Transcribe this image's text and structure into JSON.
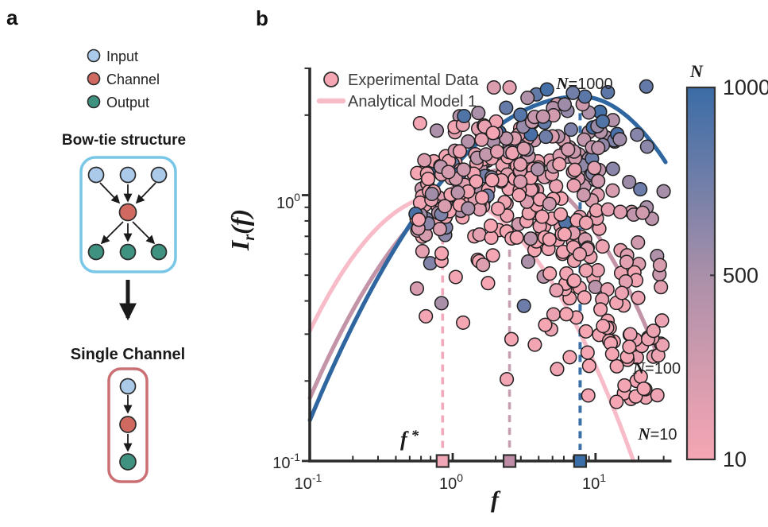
{
  "figure": {
    "panel_a_label": "a",
    "panel_b_label": "b"
  },
  "panel_a": {
    "legend": [
      {
        "label": "Input",
        "color": "#ABC9E9"
      },
      {
        "label": "Channel",
        "color": "#D0695F"
      },
      {
        "label": "Output",
        "color": "#3F9180"
      }
    ],
    "bowtie_title": "Bow-tie structure",
    "single_channel_title": "Single Channel",
    "bowtie_box_color": "#79C7E6",
    "single_box_color": "#CA6F73",
    "arrow_color": "#1a1a1a"
  },
  "chart_data": {
    "type": "scatter",
    "xlabel": "f",
    "ylabel": "Ir(f)",
    "ylabel_parts": {
      "main": "I",
      "sub": "r",
      "rest": "(f)"
    },
    "xscale": "log",
    "yscale": "log",
    "xlim": [
      0.1,
      33.9
    ],
    "ylim": [
      0.098,
      3.05
    ],
    "grid": false,
    "x_major": [
      {
        "value": 0.1,
        "base": "10",
        "exp": "-1"
      },
      {
        "value": 1,
        "base": "10",
        "exp": "0"
      },
      {
        "value": 10,
        "base": "10",
        "exp": "1"
      }
    ],
    "x_minor": [
      0.2,
      0.3,
      0.4,
      0.5,
      0.6,
      0.7,
      0.8,
      0.9,
      2,
      3,
      4,
      5,
      6,
      7,
      8,
      9,
      20,
      30
    ],
    "y_major": [
      {
        "value": 1,
        "base": "10",
        "exp": "0"
      },
      {
        "value": 0.1,
        "base": "10",
        "exp": "-1"
      }
    ],
    "y_minor": [
      0.2,
      0.3,
      0.4,
      0.5,
      0.6,
      0.7,
      0.8,
      0.9,
      2,
      3
    ],
    "legend": [
      {
        "label": "Experimental Data",
        "type": "marker"
      },
      {
        "label": "Analytical Model 1",
        "type": "line"
      }
    ],
    "series": [
      {
        "label": "N=10",
        "N": 10,
        "color": "#F8BBC8",
        "dash_color": "#F2A9BB",
        "square_color": "#F1A6B5",
        "peak_f": 0.85,
        "peak_I": 1.0,
        "c_left": 0.59,
        "c_right": 0.56,
        "logf_end": 1.28
      },
      {
        "label": "N=100",
        "N": 100,
        "color": "#C393A7",
        "dash_color": "#C79FB2",
        "square_color": "#BE8DA5",
        "peak_f": 2.5,
        "peak_I": 1.25,
        "c_left": 0.44,
        "c_right": 0.65,
        "logf_end": 1.435
      },
      {
        "label": "N=1000",
        "N": 1000,
        "color": "#30669F",
        "dash_color": "#3A6FA8",
        "square_color": "#3A6EA8",
        "peak_f": 7.8,
        "peak_I": 2.35,
        "c_left": 0.34,
        "c_right": 0.69,
        "logf_end": 1.5
      }
    ],
    "fstar": {
      "base": "f",
      "star": "*"
    },
    "scatter": {
      "count": 430,
      "seed": 42424242,
      "logf_range": [
        -0.26,
        1.49
      ],
      "logN_range": [
        1,
        3
      ],
      "noise_dex": 0.1,
      "outlier_frac": 0.16,
      "outlier_noise_dex": 0.32,
      "outlier_bias_dex": -0.15,
      "logI_clip": [
        -0.78,
        0.42
      ],
      "radius": 8.3,
      "model": {
        "peak_logf": [
          -0.0706,
          0.9628
        ],
        "peak_logI": [
          0.017,
          0.354
        ],
        "c_left": [
          0.59,
          -0.25
        ],
        "c_right": [
          0.56,
          0.13
        ]
      }
    },
    "colorbar": {
      "title": "N",
      "min": 10,
      "max": 1000,
      "ticks": [
        {
          "value": 1000,
          "label": "1000"
        },
        {
          "value": 500,
          "label": "500"
        },
        {
          "value": 10,
          "label": "10"
        }
      ]
    },
    "colormap_stops": [
      [
        0,
        "#F6A6B3"
      ],
      [
        0.25,
        "#D29BAE"
      ],
      [
        0.5,
        "#A98FA9"
      ],
      [
        0.75,
        "#6F7EA9"
      ],
      [
        1,
        "#3B6CA6"
      ]
    ]
  }
}
